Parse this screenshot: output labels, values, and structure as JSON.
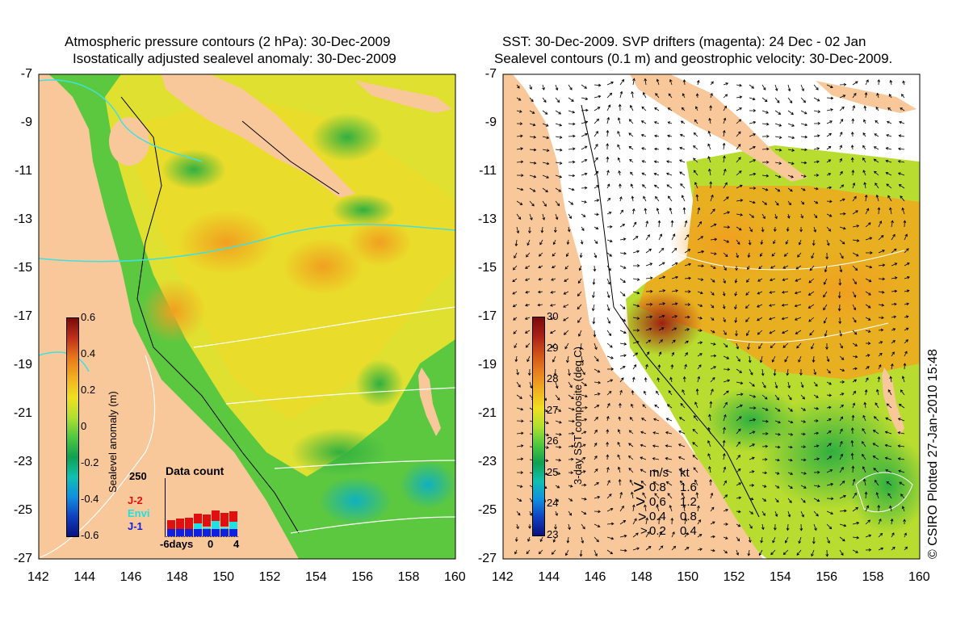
{
  "left_panel": {
    "title_line1": "Atmospheric pressure contours (2 hPa): 30-Dec-2009",
    "title_line2": "Isostatically adjusted sealevel anomaly: 30-Dec-2009",
    "colorbar": {
      "label": "Sealevel anomaly (m)",
      "ticks": [
        "0.6",
        "0.4",
        "0.2",
        "0",
        "-0.2",
        "-0.4",
        "-0.6"
      ],
      "colors": [
        "#7a0a0a",
        "#c0301a",
        "#e8781a",
        "#f0b020",
        "#f0e020",
        "#b0e030",
        "#50c840",
        "#10a050",
        "#10c0b0",
        "#1090e0",
        "#1040c0",
        "#0a1080"
      ]
    },
    "inset": {
      "title": "Data count",
      "ymax": "250",
      "x_ticks": [
        "-6days",
        "0",
        "4"
      ],
      "legend": [
        {
          "label": "J-2",
          "color": "#e01010"
        },
        {
          "label": "Envi",
          "color": "#20e0e0"
        },
        {
          "label": "J-1",
          "color": "#1020e0"
        }
      ],
      "bars": [
        {
          "j1": 30,
          "envi": 0,
          "j2": 40
        },
        {
          "j1": 30,
          "envi": 0,
          "j2": 45
        },
        {
          "j1": 32,
          "envi": 0,
          "j2": 48
        },
        {
          "j1": 32,
          "envi": 25,
          "j2": 40
        },
        {
          "j1": 30,
          "envi": 10,
          "j2": 55
        },
        {
          "j1": 32,
          "envi": 35,
          "j2": 45
        },
        {
          "j1": 30,
          "envi": 10,
          "j2": 60
        },
        {
          "j1": 32,
          "envi": 30,
          "j2": 45
        }
      ]
    }
  },
  "right_panel": {
    "title_line1": "SST: 30-Dec-2009. SVP drifters (magenta): 24 Dec - 02 Jan",
    "title_line2": "Sealevel contours (0.1 m) and geostrophic velocity: 30-Dec-2009.",
    "colorbar": {
      "label": "3-day SST composite (deg C)",
      "ticks": [
        "30",
        "29",
        "28",
        "27",
        "26",
        "25",
        "24",
        "23"
      ],
      "colors": [
        "#7a0a0a",
        "#a82018",
        "#d05018",
        "#e88020",
        "#f0b020",
        "#f0e020",
        "#b0e030",
        "#50c840",
        "#10a050",
        "#10c0b0",
        "#1090e0",
        "#1040c0",
        "#0a1080"
      ]
    },
    "velocity_key": {
      "header_ms": "m/s",
      "header_kt": "kt",
      "rows": [
        {
          "ms": "0.8",
          "kt": "1.6"
        },
        {
          "ms": "0.6",
          "kt": "1.2"
        },
        {
          "ms": "0.4",
          "kt": "0.8"
        },
        {
          "ms": "0.2",
          "kt": "0.4"
        }
      ]
    },
    "credit": "© CSIRO Plotted 27-Jan-2010 15:48"
  },
  "axes": {
    "x_ticks": [
      "142",
      "144",
      "146",
      "148",
      "150",
      "152",
      "154",
      "156",
      "158",
      "160"
    ],
    "y_ticks": [
      "-7",
      "-9",
      "-11",
      "-13",
      "-15",
      "-17",
      "-19",
      "-21",
      "-23",
      "-25",
      "-27"
    ]
  },
  "colors": {
    "land": "#f9c89a",
    "sea_green": "#5cc840",
    "sea_yellow": "#e8e030",
    "sea_orange": "#f0a020",
    "white_gap": "#ffffff"
  }
}
